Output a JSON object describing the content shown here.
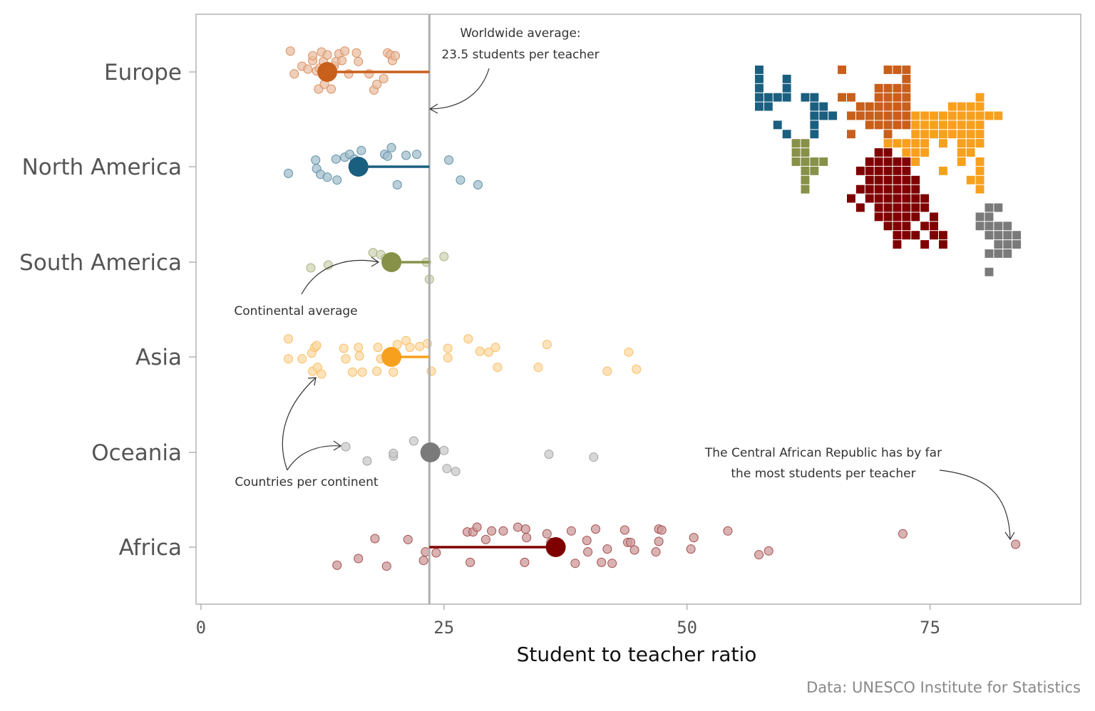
{
  "chart_data": {
    "type": "scatter",
    "xlabel": "Student to teacher ratio",
    "xlim": [
      -0.5,
      90.5
    ],
    "xticks": [
      0,
      25,
      50,
      75
    ],
    "caption": "Data: UNESCO Institute for Statistics",
    "world_average": 23.5,
    "annotations": {
      "world": [
        "Worldwide average:",
        "23.5 students per teacher"
      ],
      "continental": "Continental average",
      "countries": "Countries per continent",
      "car": [
        "The Central African Republic has by far",
        "the most students per teacher"
      ]
    },
    "series": [
      {
        "name": "Europe",
        "color": "#C85F1B",
        "average": 13.0,
        "points": [
          [
            9.2,
            0.22
          ],
          [
            9.6,
            -0.02
          ],
          [
            10.4,
            0.06
          ],
          [
            11.0,
            0.03
          ],
          [
            11.5,
            0.12
          ],
          [
            11.5,
            0.17
          ],
          [
            11.9,
            0.01
          ],
          [
            12.1,
            -0.18
          ],
          [
            12.2,
            0.04
          ],
          [
            12.4,
            0.21
          ],
          [
            12.6,
            0.11
          ],
          [
            12.7,
            -0.13
          ],
          [
            13.0,
            0.18
          ],
          [
            13.4,
            -0.18
          ],
          [
            13.7,
            0.06
          ],
          [
            13.9,
            0.11
          ],
          [
            14.2,
            0.19
          ],
          [
            14.5,
            0.12
          ],
          [
            14.8,
            0.22
          ],
          [
            15.2,
            -0.02
          ],
          [
            16.0,
            0.2
          ],
          [
            16.2,
            0.11
          ],
          [
            17.3,
            -0.02
          ],
          [
            17.8,
            -0.19
          ],
          [
            18.1,
            -0.13
          ],
          [
            18.8,
            -0.07
          ],
          [
            19.2,
            0.2
          ],
          [
            19.5,
            0.18
          ],
          [
            19.7,
            0.12
          ],
          [
            20.0,
            0.17
          ]
        ]
      },
      {
        "name": "North America",
        "color": "#1A5F80",
        "average": 16.2,
        "points": [
          [
            9.0,
            -0.07
          ],
          [
            11.8,
            0.07
          ],
          [
            11.9,
            -0.02
          ],
          [
            12.3,
            -0.08
          ],
          [
            13.0,
            -0.11
          ],
          [
            13.9,
            0.08
          ],
          [
            14.0,
            -0.14
          ],
          [
            14.8,
            0.1
          ],
          [
            15.3,
            0.13
          ],
          [
            15.8,
            0.08
          ],
          [
            16.5,
            0.17
          ],
          [
            18.9,
            0.13
          ],
          [
            19.2,
            0.11
          ],
          [
            19.6,
            0.2
          ],
          [
            20.2,
            -0.19
          ],
          [
            21.1,
            0.12
          ],
          [
            22.2,
            0.13
          ],
          [
            25.5,
            0.07
          ],
          [
            26.7,
            -0.14
          ],
          [
            28.5,
            -0.19
          ]
        ]
      },
      {
        "name": "South America",
        "color": "#879148",
        "average": 19.6,
        "points": [
          [
            11.3,
            -0.06
          ],
          [
            13.1,
            -0.03
          ],
          [
            17.7,
            0.1
          ],
          [
            18.5,
            0.08
          ],
          [
            19.0,
            0.04
          ],
          [
            23.2,
            0.0
          ],
          [
            23.5,
            -0.18
          ],
          [
            25.0,
            0.06
          ]
        ]
      },
      {
        "name": "Asia",
        "color": "#F7A01E",
        "average": 19.6,
        "points": [
          [
            9.0,
            0.19
          ],
          [
            9.0,
            -0.02
          ],
          [
            10.4,
            -0.02
          ],
          [
            11.4,
            0.04
          ],
          [
            11.5,
            -0.15
          ],
          [
            11.7,
            0.1
          ],
          [
            11.9,
            0.12
          ],
          [
            12.0,
            -0.11
          ],
          [
            12.4,
            -0.18
          ],
          [
            14.9,
            -0.02
          ],
          [
            14.7,
            0.09
          ],
          [
            15.6,
            -0.16
          ],
          [
            16.2,
            0.1
          ],
          [
            16.3,
            0.01
          ],
          [
            16.6,
            -0.16
          ],
          [
            18.1,
            -0.15
          ],
          [
            18.5,
            -0.02
          ],
          [
            18.2,
            0.1
          ],
          [
            19.8,
            -0.16
          ],
          [
            20.2,
            0.13
          ],
          [
            21.1,
            0.17
          ],
          [
            21.5,
            0.1
          ],
          [
            22.5,
            0.11
          ],
          [
            23.3,
            0.14
          ],
          [
            23.7,
            -0.15
          ],
          [
            25.4,
            0.09
          ],
          [
            25.4,
            -0.01
          ],
          [
            27.5,
            0.19
          ],
          [
            28.7,
            0.06
          ],
          [
            29.6,
            0.05
          ],
          [
            30.3,
            0.1
          ],
          [
            30.5,
            -0.11
          ],
          [
            34.7,
            -0.11
          ],
          [
            35.6,
            0.13
          ],
          [
            41.8,
            -0.15
          ],
          [
            44.0,
            0.05
          ],
          [
            44.8,
            -0.13
          ]
        ]
      },
      {
        "name": "Oceania",
        "color": "#7A7A7A",
        "average": 23.6,
        "points": [
          [
            14.9,
            0.06
          ],
          [
            17.1,
            -0.09
          ],
          [
            19.8,
            -0.04
          ],
          [
            19.8,
            -0.01
          ],
          [
            21.9,
            0.12
          ],
          [
            25.0,
            0.02
          ],
          [
            25.3,
            -0.17
          ],
          [
            26.2,
            -0.2
          ],
          [
            35.8,
            -0.02
          ],
          [
            40.4,
            -0.05
          ]
        ]
      },
      {
        "name": "Africa",
        "color": "#7F0000",
        "average": 36.5,
        "points": [
          [
            14.0,
            -0.19
          ],
          [
            16.2,
            -0.12
          ],
          [
            17.9,
            0.09
          ],
          [
            19.1,
            -0.2
          ],
          [
            21.3,
            0.08
          ],
          [
            22.9,
            -0.14
          ],
          [
            23.1,
            -0.05
          ],
          [
            24.2,
            -0.06
          ],
          [
            27.4,
            0.16
          ],
          [
            27.7,
            -0.16
          ],
          [
            28.0,
            0.16
          ],
          [
            28.4,
            0.21
          ],
          [
            29.3,
            0.08
          ],
          [
            29.9,
            0.17
          ],
          [
            31.1,
            0.17
          ],
          [
            32.6,
            0.21
          ],
          [
            33.3,
            -0.16
          ],
          [
            33.4,
            0.19
          ],
          [
            33.5,
            0.1
          ],
          [
            35.6,
            0.14
          ],
          [
            36.0,
            0.05
          ],
          [
            38.1,
            0.17
          ],
          [
            38.5,
            -0.17
          ],
          [
            39.7,
            0.07
          ],
          [
            39.8,
            -0.05
          ],
          [
            40.6,
            0.19
          ],
          [
            41.2,
            -0.16
          ],
          [
            41.8,
            -0.02
          ],
          [
            42.3,
            -0.17
          ],
          [
            43.6,
            0.18
          ],
          [
            43.9,
            0.05
          ],
          [
            44.2,
            0.05
          ],
          [
            44.6,
            -0.03
          ],
          [
            46.8,
            -0.05
          ],
          [
            47.1,
            0.19
          ],
          [
            47.1,
            0.06
          ],
          [
            47.4,
            0.18
          ],
          [
            50.4,
            -0.02
          ],
          [
            50.7,
            0.1
          ],
          [
            54.2,
            0.17
          ],
          [
            57.4,
            -0.08
          ],
          [
            58.4,
            -0.04
          ],
          [
            72.2,
            0.14
          ],
          [
            83.8,
            0.03
          ]
        ]
      }
    ]
  }
}
